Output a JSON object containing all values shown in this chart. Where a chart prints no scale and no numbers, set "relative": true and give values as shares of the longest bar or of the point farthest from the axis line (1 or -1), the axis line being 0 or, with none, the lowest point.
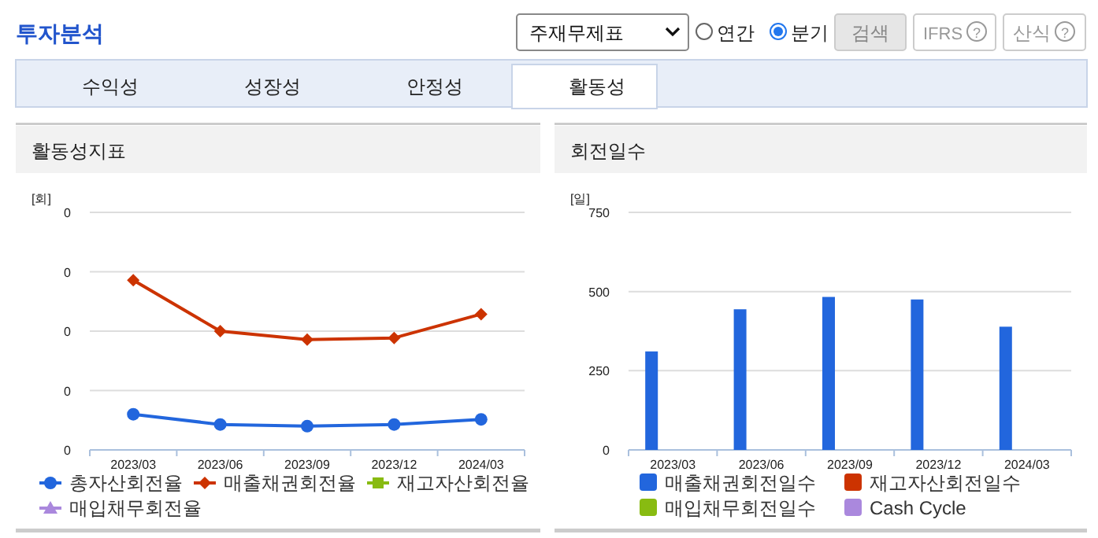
{
  "chart_data": [
    {
      "type": "other",
      "title": "투자분석",
      "annotations": [
        "주재무제표",
        "연간",
        "분기",
        "검색",
        "IFRS",
        "?",
        "산식",
        "?",
        "수익성",
        "성장성",
        "안정성",
        "활동성"
      ]
    },
    {
      "type": "line",
      "title": "활동성지표",
      "ylabel": "[회]",
      "relative": true,
      "categories": [
        "2023/03",
        "2023/06",
        "2023/09",
        "2023/12",
        "2024/03"
      ],
      "ylim": [
        0,
        1.4
      ],
      "annotations": [
        "0",
        "0",
        "0",
        "0",
        "0"
      ],
      "grid": "y",
      "legend": "bottom",
      "series": [
        {
          "name": "총자산회전율",
          "color": "#2266dd",
          "marker": "circle",
          "values": [
            0.21,
            0.15,
            0.14,
            0.15,
            0.18
          ]
        },
        {
          "name": "매출채권회전율",
          "color": "#cc3300",
          "marker": "diamond",
          "values": [
            1,
            0.7,
            0.65,
            0.66,
            0.8
          ]
        },
        {
          "name": "재고자산회전율",
          "color": "#88bb11",
          "marker": "square",
          "values": [
            null,
            null,
            null,
            null,
            null
          ]
        },
        {
          "name": "매입채무회전율",
          "color": "#aa88dd",
          "marker": "star",
          "values": [
            null,
            null,
            null,
            null,
            null
          ]
        }
      ]
    },
    {
      "type": "bar",
      "title": "회전일수",
      "ylabel": "[일]",
      "categories": [
        "2023/03",
        "2023/06",
        "2023/09",
        "2023/12",
        "2024/03"
      ],
      "ylim": [
        0,
        750
      ],
      "yticks": [
        0,
        250,
        500,
        750
      ],
      "grid": "y",
      "legend": "bottom",
      "series": [
        {
          "name": "매출채권회전일수",
          "color": "#2266dd",
          "values": [
            311,
            444,
            483,
            475,
            389
          ]
        },
        {
          "name": "재고자산회전일수",
          "color": "#cc3300",
          "values": [
            null,
            null,
            null,
            null,
            null
          ]
        },
        {
          "name": "매입채무회전일수",
          "color": "#88bb11",
          "values": [
            null,
            null,
            null,
            null,
            null
          ]
        },
        {
          "name": "Cash Cycle",
          "color": "#aa88dd",
          "values": [
            null,
            null,
            null,
            null,
            null
          ]
        }
      ]
    }
  ]
}
